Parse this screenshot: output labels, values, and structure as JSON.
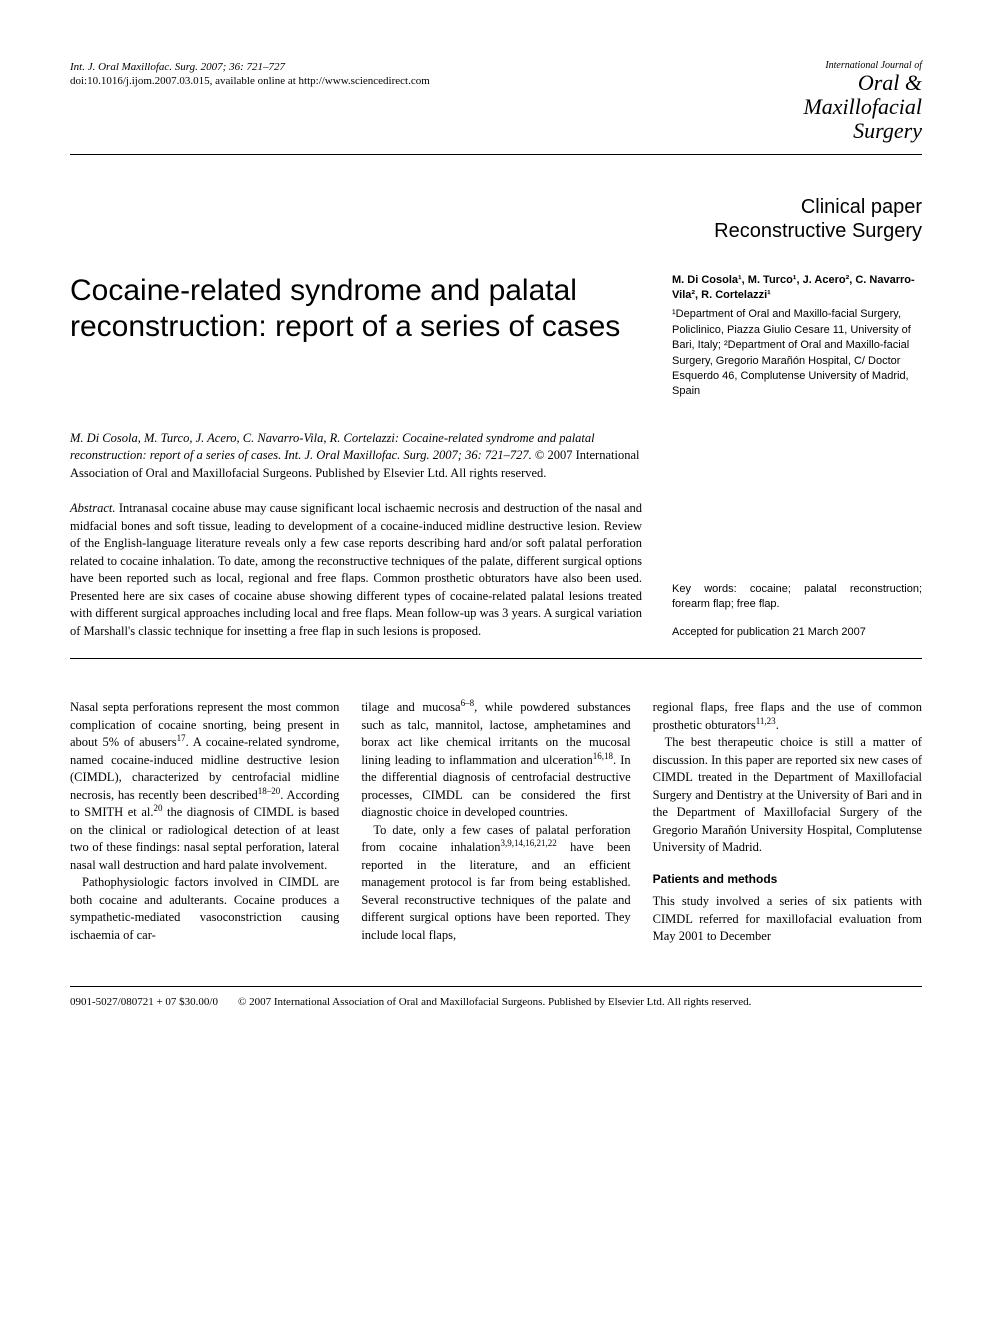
{
  "header": {
    "citation_line1": "Int. J. Oral Maxillofac. Surg. 2007; 36: 721–727",
    "citation_line2": "doi:10.1016/j.ijom.2007.03.015, available online at http://www.sciencedirect.com",
    "journal_logo": {
      "line1": "International Journal of",
      "line2": "Oral &",
      "line3": "Maxillofacial",
      "line4": "Surgery"
    }
  },
  "section_type": {
    "line1": "Clinical paper",
    "line2": "Reconstructive Surgery"
  },
  "title": "Cocaine-related syndrome and palatal reconstruction: report of a series of cases",
  "authors": {
    "list": "M. Di Cosola¹, M. Turco¹, J. Acero², C. Navarro-Vila², R. Cortelazzi¹",
    "affiliations": "¹Department of Oral and Maxillo-facial Surgery, Policlinico, Piazza Giulio Cesare 11, University of Bari, Italy; ²Department of Oral and Maxillo-facial Surgery, Gregorio Marañón Hospital, C/ Doctor Esquerdo 46, Complutense University of Madrid, Spain"
  },
  "citation_full": {
    "authors_italic": "M. Di Cosola, M. Turco, J. Acero, C. Navarro-Vila, R. Cortelazzi: Cocaine-related syndrome and palatal reconstruction: report of a series of cases. Int. J. Oral Maxillofac. Surg. 2007; 36: 721–727.",
    "copyright": " © 2007 International Association of Oral and Maxillofacial Surgeons. Published by Elsevier Ltd. All rights reserved."
  },
  "abstract": {
    "label": "Abstract.",
    "text": " Intranasal cocaine abuse may cause significant local ischaemic necrosis and destruction of the nasal and midfacial bones and soft tissue, leading to development of a cocaine-induced midline destructive lesion. Review of the English-language literature reveals only a few case reports describing hard and/or soft palatal perforation related to cocaine inhalation. To date, among the reconstructive techniques of the palate, different surgical options have been reported such as local, regional and free flaps. Common prosthetic obturators have also been used. Presented here are six cases of cocaine abuse showing different types of cocaine-related palatal lesions treated with different surgical approaches including local and free flaps. Mean follow-up was 3 years. A surgical variation of Marshall's classic technique for insetting a free flap in such lesions is proposed."
  },
  "keywords": {
    "label": "Key words:",
    "text": " cocaine; palatal reconstruction; forearm flap; free flap.",
    "accepted": "Accepted for publication 21 March 2007"
  },
  "body": {
    "col1": {
      "p1_a": "Nasal septa perforations represent the most common complication of cocaine snorting, being present in about 5% of abusers",
      "p1_sup1": "17",
      "p1_b": ". A cocaine-related syndrome, named cocaine-induced midline destructive lesion (CIMDL), characterized by centrofacial midline necrosis, has recently been described",
      "p1_sup2": "18–20",
      "p1_c": ". According to S",
      "p1_smallcaps": "MITH",
      "p1_d": " et al.",
      "p1_sup3": "20",
      "p1_e": " the diagnosis of CIMDL is based on the clinical or radiological detection of at least two of these findings: nasal septal perforation, lateral nasal wall destruction and hard palate involvement.",
      "p2": "Pathophysiologic factors involved in CIMDL are both cocaine and adulterants. Cocaine produces a sympathetic-mediated vasoconstriction causing ischaemia of car-"
    },
    "col2": {
      "p1_a": "tilage and mucosa",
      "p1_sup1": "6–8",
      "p1_b": ", while powdered substances such as talc, mannitol, lactose, amphetamines and borax act like chemical irritants on the mucosal lining leading to inflammation and ulceration",
      "p1_sup2": "16,18",
      "p1_c": ". In the differential diagnosis of centrofacial destructive processes, CIMDL can be considered the first diagnostic choice in developed countries.",
      "p2_a": "To date, only a few cases of palatal perforation from cocaine inhalation",
      "p2_sup1": "3,9,14,16,21,22",
      "p2_b": " have been reported in the literature, and an efficient management protocol is far from being established. Several reconstructive techniques of the palate and different surgical options have been reported. They include local flaps,"
    },
    "col3": {
      "p1_a": "regional flaps, free flaps and the use of common prosthetic obturators",
      "p1_sup1": "11,23",
      "p1_b": ".",
      "p2": "The best therapeutic choice is still a matter of discussion. In this paper are reported six new cases of CIMDL treated in the Department of Maxillofacial Surgery and Dentistry at the University of Bari and in the Department of Maxillofacial Surgery of the Gregorio Marañón University Hospital, Complutense University of Madrid.",
      "heading": "Patients and methods",
      "p3": "This study involved a series of six patients with CIMDL referred for maxillofacial evaluation from May 2001 to December"
    }
  },
  "footer": {
    "code": "0901-5027/080721 + 07 $30.00/0",
    "copyright": "© 2007 International Association of Oral and Maxillofacial Surgeons. Published by Elsevier Ltd. All rights reserved."
  },
  "colors": {
    "text": "#000000",
    "background": "#ffffff",
    "rule": "#000000"
  },
  "typography": {
    "body_font": "Georgia, Times New Roman, serif",
    "sans_font": "Arial, Helvetica, sans-serif",
    "title_fontsize": 30,
    "section_type_fontsize": 20,
    "body_fontsize": 12.5,
    "small_fontsize": 11
  }
}
